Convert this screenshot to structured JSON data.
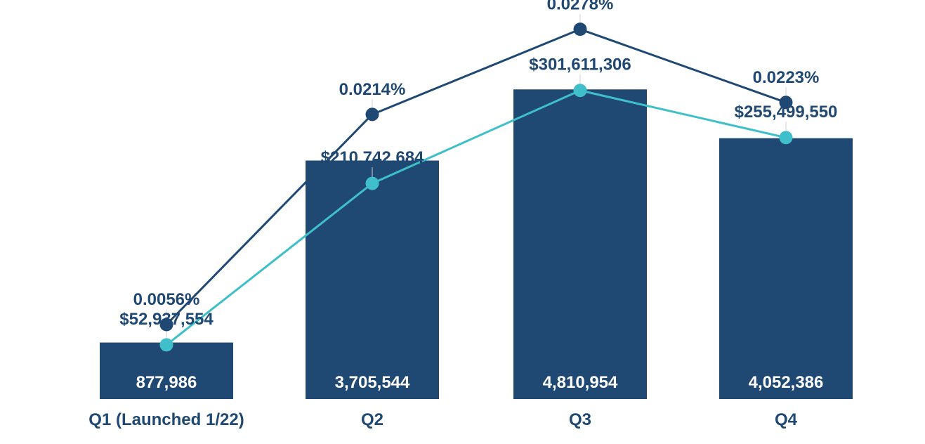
{
  "colors": {
    "bar": "#1f4872",
    "pct_line": "#1f4872",
    "amount_line": "#3fbfc9",
    "label": "#1f4872",
    "bar_label": "#ffffff",
    "axis_label": "#1f4872",
    "background": "#ffffff"
  },
  "chart_data": {
    "type": "bar",
    "categories": [
      "Q1 (Launched 1/22)",
      "Q2",
      "Q3",
      "Q4"
    ],
    "title": "",
    "xlabel": "",
    "ylabel": "",
    "grid": false,
    "legend": "none",
    "series": [
      {
        "type": "bar",
        "values": [
          877986,
          3705544,
          4810954,
          4052386
        ],
        "labels": [
          "877,986",
          "3,705,544",
          "4,810,954",
          "4,052,386"
        ],
        "ylim": [
          0,
          6200000
        ]
      },
      {
        "type": "line",
        "values": [
          52937554,
          210742684,
          301611306,
          255499550
        ],
        "labels": [
          "$52,937,554",
          "$210,742,684",
          "$301,611,306",
          "$255,499,550"
        ],
        "ylim": [
          0,
          390000000
        ]
      },
      {
        "type": "line",
        "values": [
          0.0056,
          0.0214,
          0.0278,
          0.0223
        ],
        "labels": [
          "0.0056%",
          "0.0214%",
          "0.0278%",
          "0.0223%"
        ],
        "ylim": [
          0,
          0.03
        ]
      }
    ]
  }
}
